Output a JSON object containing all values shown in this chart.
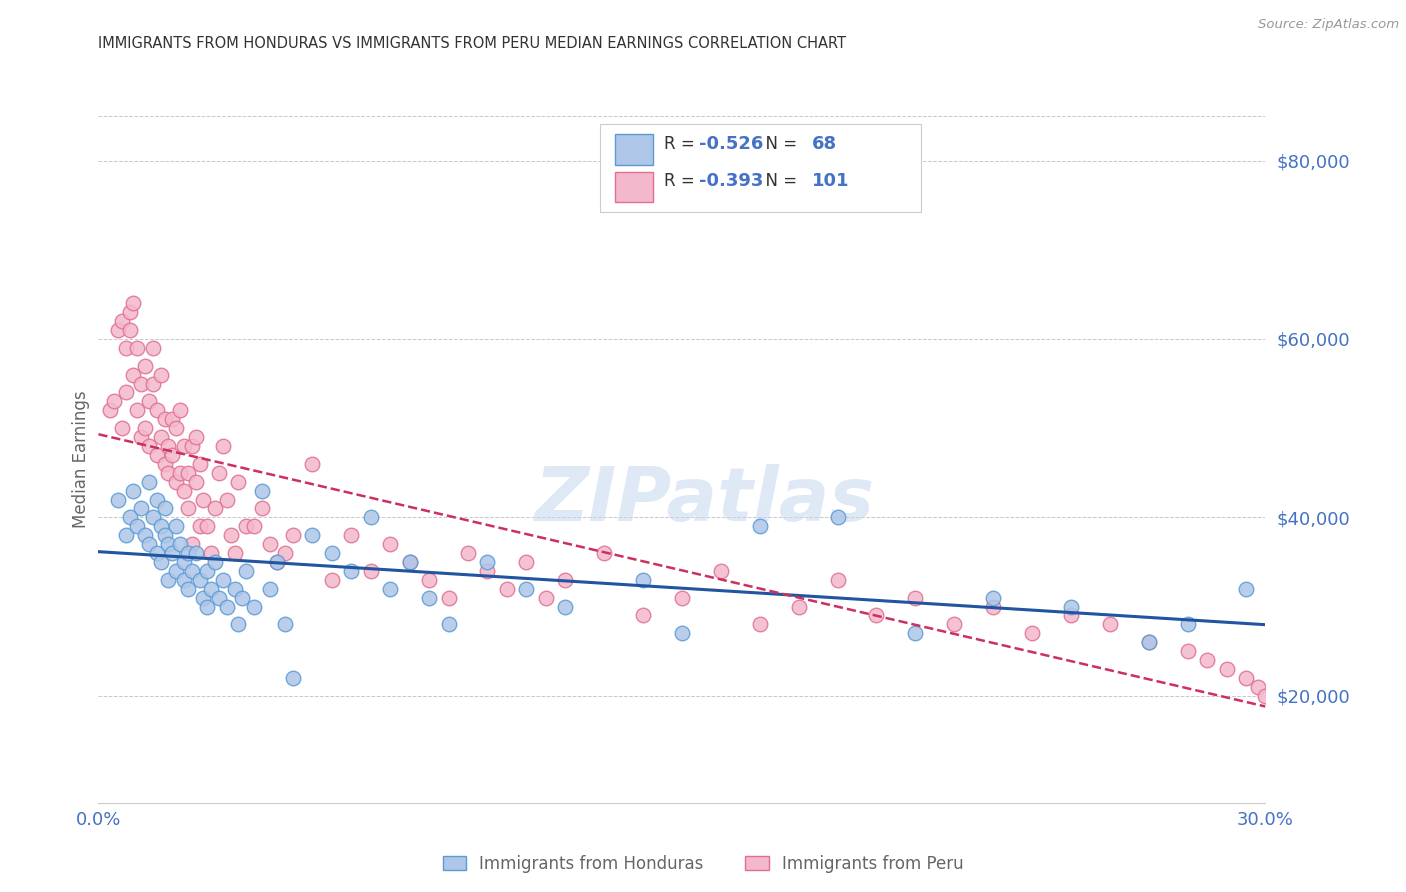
{
  "title": "IMMIGRANTS FROM HONDURAS VS IMMIGRANTS FROM PERU MEDIAN EARNINGS CORRELATION CHART",
  "source": "Source: ZipAtlas.com",
  "ylabel": "Median Earnings",
  "x_min": 0.0,
  "x_max": 0.3,
  "y_min": 8000,
  "y_max": 85000,
  "yticks": [
    20000,
    40000,
    60000,
    80000
  ],
  "ytick_labels": [
    "$20,000",
    "$40,000",
    "$60,000",
    "$80,000"
  ],
  "xticks": [
    0.0,
    0.05,
    0.1,
    0.15,
    0.2,
    0.25,
    0.3
  ],
  "xtick_labels": [
    "0.0%",
    "",
    "",
    "",
    "",
    "",
    "30.0%"
  ],
  "honduras_color": "#aec6e8",
  "honduras_edge_color": "#5b9bd5",
  "peru_color": "#f4b8cc",
  "peru_edge_color": "#e07090",
  "trend_honduras_color": "#2155a0",
  "trend_peru_color": "#cc3060",
  "R_honduras": -0.526,
  "N_honduras": 68,
  "R_peru": -0.393,
  "N_peru": 101,
  "axis_color": "#4472c4",
  "watermark": "ZIPatlas",
  "legend_label_1": "Immigrants from Honduras",
  "legend_label_2": "Immigrants from Peru",
  "honduras_x": [
    0.005,
    0.007,
    0.008,
    0.009,
    0.01,
    0.011,
    0.012,
    0.013,
    0.013,
    0.014,
    0.015,
    0.015,
    0.016,
    0.016,
    0.017,
    0.017,
    0.018,
    0.018,
    0.019,
    0.02,
    0.02,
    0.021,
    0.022,
    0.022,
    0.023,
    0.023,
    0.024,
    0.025,
    0.026,
    0.027,
    0.028,
    0.028,
    0.029,
    0.03,
    0.031,
    0.032,
    0.033,
    0.035,
    0.036,
    0.037,
    0.038,
    0.04,
    0.042,
    0.044,
    0.046,
    0.048,
    0.05,
    0.055,
    0.06,
    0.065,
    0.07,
    0.075,
    0.08,
    0.085,
    0.09,
    0.1,
    0.11,
    0.12,
    0.14,
    0.15,
    0.17,
    0.19,
    0.21,
    0.23,
    0.25,
    0.27,
    0.28,
    0.295
  ],
  "honduras_y": [
    42000,
    38000,
    40000,
    43000,
    39000,
    41000,
    38000,
    44000,
    37000,
    40000,
    42000,
    36000,
    39000,
    35000,
    41000,
    38000,
    37000,
    33000,
    36000,
    39000,
    34000,
    37000,
    35000,
    33000,
    36000,
    32000,
    34000,
    36000,
    33000,
    31000,
    34000,
    30000,
    32000,
    35000,
    31000,
    33000,
    30000,
    32000,
    28000,
    31000,
    34000,
    30000,
    43000,
    32000,
    35000,
    28000,
    22000,
    38000,
    36000,
    34000,
    40000,
    32000,
    35000,
    31000,
    28000,
    35000,
    32000,
    30000,
    33000,
    27000,
    39000,
    40000,
    27000,
    31000,
    30000,
    26000,
    28000,
    32000
  ],
  "peru_x": [
    0.003,
    0.004,
    0.005,
    0.006,
    0.006,
    0.007,
    0.007,
    0.008,
    0.008,
    0.009,
    0.009,
    0.01,
    0.01,
    0.011,
    0.011,
    0.012,
    0.012,
    0.013,
    0.013,
    0.014,
    0.014,
    0.015,
    0.015,
    0.016,
    0.016,
    0.017,
    0.017,
    0.018,
    0.018,
    0.019,
    0.019,
    0.02,
    0.02,
    0.021,
    0.021,
    0.022,
    0.022,
    0.023,
    0.023,
    0.024,
    0.024,
    0.025,
    0.025,
    0.026,
    0.026,
    0.027,
    0.028,
    0.029,
    0.03,
    0.031,
    0.032,
    0.033,
    0.034,
    0.035,
    0.036,
    0.038,
    0.04,
    0.042,
    0.044,
    0.046,
    0.048,
    0.05,
    0.055,
    0.06,
    0.065,
    0.07,
    0.075,
    0.08,
    0.085,
    0.09,
    0.095,
    0.1,
    0.105,
    0.11,
    0.115,
    0.12,
    0.13,
    0.14,
    0.15,
    0.16,
    0.17,
    0.18,
    0.19,
    0.2,
    0.21,
    0.22,
    0.23,
    0.24,
    0.25,
    0.26,
    0.27,
    0.28,
    0.285,
    0.29,
    0.295,
    0.298,
    0.3,
    0.302,
    0.305,
    0.308,
    0.31
  ],
  "peru_y": [
    52000,
    53000,
    61000,
    62000,
    50000,
    54000,
    59000,
    61000,
    63000,
    56000,
    64000,
    52000,
    59000,
    49000,
    55000,
    57000,
    50000,
    53000,
    48000,
    59000,
    55000,
    47000,
    52000,
    49000,
    56000,
    51000,
    46000,
    48000,
    45000,
    51000,
    47000,
    50000,
    44000,
    52000,
    45000,
    48000,
    43000,
    45000,
    41000,
    48000,
    37000,
    49000,
    44000,
    39000,
    46000,
    42000,
    39000,
    36000,
    41000,
    45000,
    48000,
    42000,
    38000,
    36000,
    44000,
    39000,
    39000,
    41000,
    37000,
    35000,
    36000,
    38000,
    46000,
    33000,
    38000,
    34000,
    37000,
    35000,
    33000,
    31000,
    36000,
    34000,
    32000,
    35000,
    31000,
    33000,
    36000,
    29000,
    31000,
    34000,
    28000,
    30000,
    33000,
    29000,
    31000,
    28000,
    30000,
    27000,
    29000,
    28000,
    26000,
    25000,
    24000,
    23000,
    22000,
    21000,
    20000,
    19000,
    18500,
    18000,
    17500
  ]
}
